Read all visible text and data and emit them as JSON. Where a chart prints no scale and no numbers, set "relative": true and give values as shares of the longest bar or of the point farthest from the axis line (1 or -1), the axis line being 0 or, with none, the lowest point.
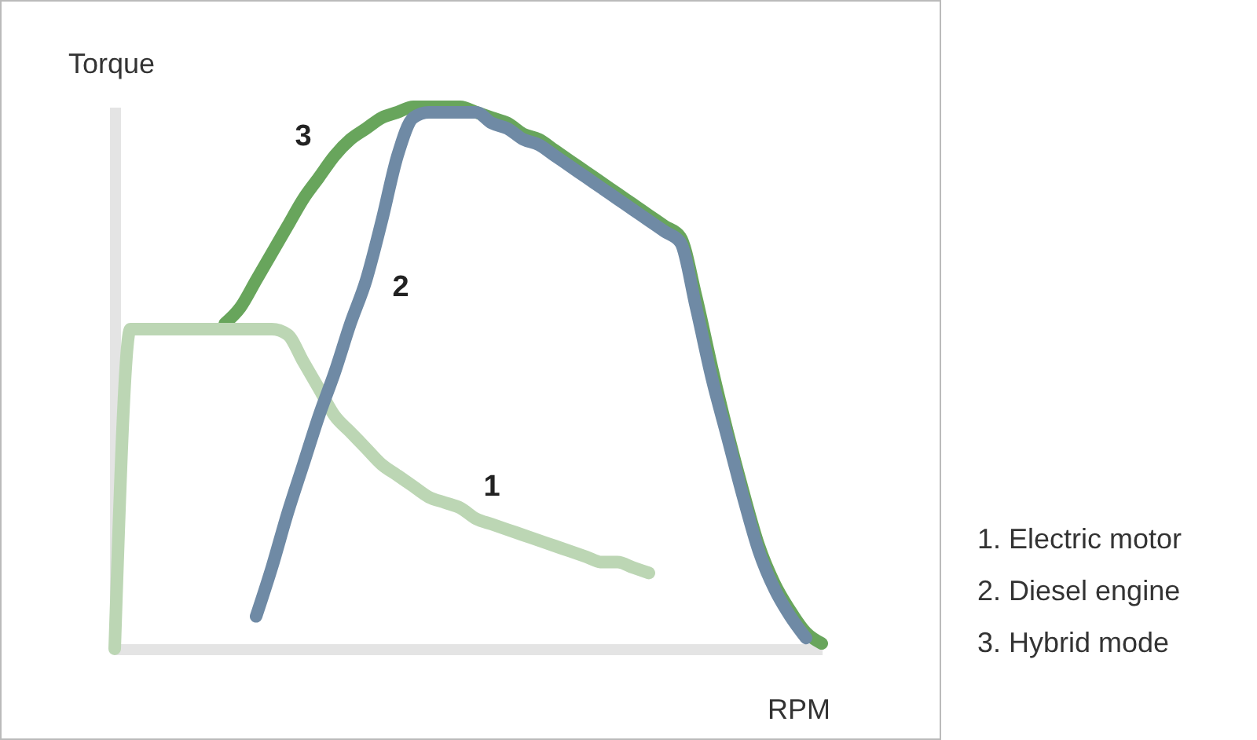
{
  "chart_data": {
    "type": "line",
    "relative": true,
    "xlabel": "RPM",
    "ylabel": "Torque",
    "categories": [
      null,
      null,
      null,
      null,
      null,
      null,
      null,
      null,
      null,
      null,
      null,
      null,
      null,
      null,
      null,
      null,
      null,
      null,
      null,
      null,
      null,
      null,
      null,
      null,
      null,
      null,
      null,
      null,
      null,
      null,
      null,
      null,
      null,
      null,
      null,
      null,
      null,
      null,
      null,
      null,
      null,
      null,
      null,
      null,
      null,
      null
    ],
    "series": [
      {
        "name": "1",
        "color": "#bcd6b4",
        "values": [
          0,
          0.59,
          0.59,
          0.59,
          0.59,
          0.59,
          0.59,
          0.59,
          0.59,
          0.59,
          0.59,
          0.58,
          0.53,
          0.48,
          0.43,
          0.4,
          0.37,
          0.34,
          0.32,
          0.3,
          0.28,
          0.27,
          0.26,
          0.24,
          0.23,
          0.22,
          0.21,
          0.2,
          0.19,
          0.18,
          0.17,
          0.16,
          0.16,
          0.15,
          0.14,
          null,
          null,
          null,
          null,
          null,
          null,
          null,
          null,
          null,
          null,
          null
        ]
      },
      {
        "name": "2",
        "color": "#6f8aa5",
        "values": [
          null,
          null,
          null,
          null,
          null,
          null,
          null,
          null,
          null,
          0.06,
          0.15,
          0.25,
          0.34,
          0.43,
          0.51,
          0.6,
          0.68,
          0.79,
          0.91,
          0.98,
          0.99,
          0.99,
          0.99,
          0.99,
          0.97,
          0.96,
          0.94,
          0.93,
          0.91,
          0.89,
          0.87,
          0.85,
          0.83,
          0.81,
          0.79,
          0.77,
          0.75,
          0.63,
          0.5,
          0.39,
          0.28,
          0.18,
          0.11,
          0.06,
          0.02,
          null
        ]
      },
      {
        "name": "3",
        "color": "#68a55c",
        "values": [
          null,
          null,
          null,
          null,
          null,
          null,
          null,
          0.6,
          0.63,
          0.68,
          0.73,
          0.78,
          0.83,
          0.87,
          0.91,
          0.94,
          0.96,
          0.98,
          0.99,
          1.0,
          1.0,
          1.0,
          1.0,
          0.99,
          0.98,
          0.97,
          0.95,
          0.94,
          0.92,
          0.9,
          0.88,
          0.86,
          0.84,
          0.82,
          0.8,
          0.78,
          0.76,
          0.65,
          0.52,
          0.4,
          0.29,
          0.19,
          0.12,
          0.07,
          0.03,
          0.01
        ]
      }
    ],
    "annotations": [
      "1. Electric motor",
      "2. Diesel engine",
      "3. Hybrid mode"
    ]
  }
}
